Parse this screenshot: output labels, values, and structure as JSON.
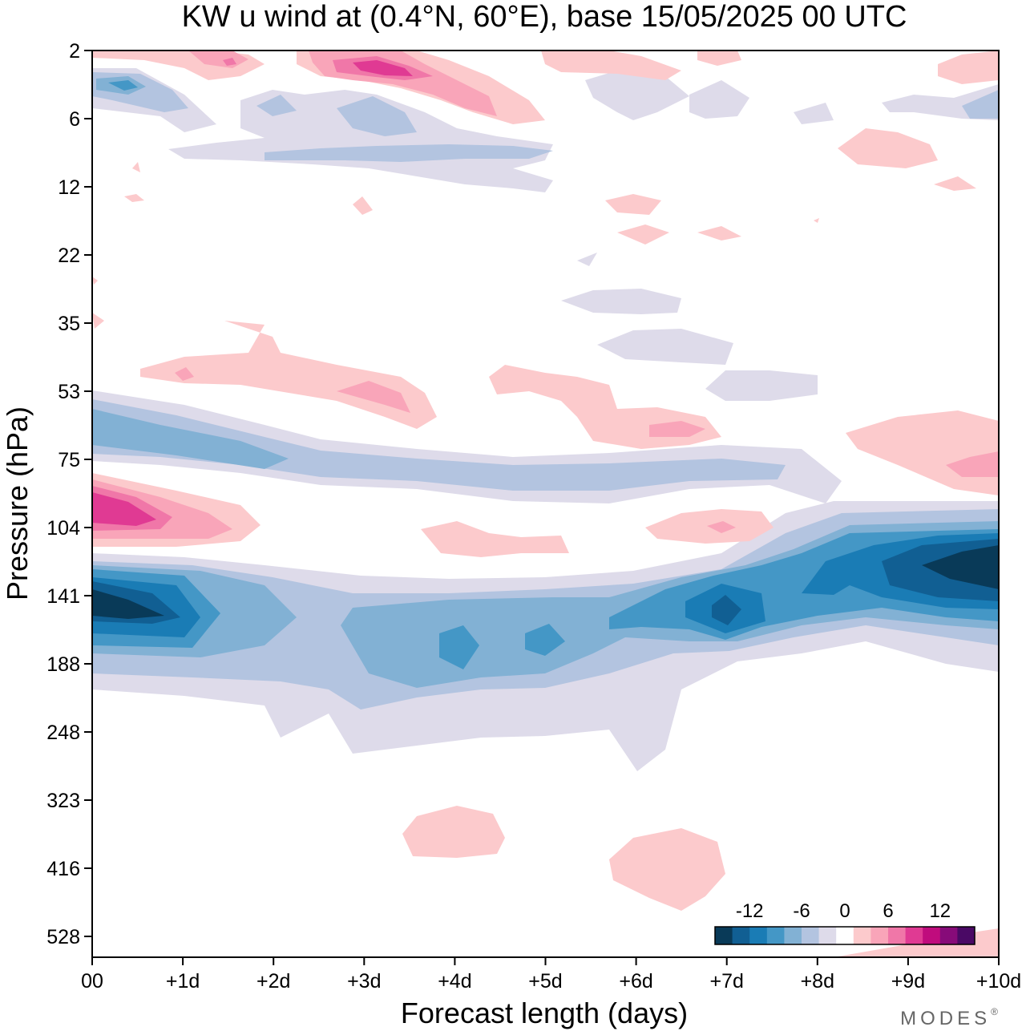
{
  "chart_data": {
    "type": "heatmap",
    "title": "KW u wind at (0.4°N, 60°E),  base 15/05/2025  00 UTC",
    "xlabel": "Forecast length (days)",
    "ylabel": "Pressure (hPa)",
    "x_ticks": [
      "00",
      "+1d",
      "+2d",
      "+3d",
      "+4d",
      "+5d",
      "+6d",
      "+7d",
      "+8d",
      "+9d",
      "+10d"
    ],
    "xlim": [
      0,
      10
    ],
    "y_ticks": [
      "2",
      "6",
      "12",
      "22",
      "35",
      "53",
      "75",
      "104",
      "141",
      "188",
      "248",
      "323",
      "416",
      "528"
    ],
    "y_scale": "log-pressure, inverted",
    "colorbar": {
      "tick_labels": [
        "-12",
        "-6",
        "0",
        "6",
        "12"
      ],
      "bin_edges": [
        -16,
        -14,
        -12,
        -10,
        -8,
        -6,
        -4,
        -2,
        2,
        4,
        6,
        8,
        10,
        12,
        14,
        16
      ],
      "colors": [
        "#093a58",
        "#115f93",
        "#1a7cb5",
        "#4497c6",
        "#82b1d4",
        "#b3c4e0",
        "#dedbea",
        "#ffffff",
        "#fccacc",
        "#f9a5b9",
        "#f077a8",
        "#e03a93",
        "#c00c7d",
        "#870b79",
        "#4a0965"
      ]
    },
    "features": [
      {
        "name": "lower-stratosphere-easterly-core",
        "x_range": [
          0,
          10
        ],
        "y_range_hPa": [
          104,
          248
        ],
        "min_value": -16,
        "trend": "strengthens after +6d"
      },
      {
        "name": "westerly-near-104hPa",
        "x_range": [
          0,
          2
        ],
        "y_hPa": 90,
        "max_value": 12
      },
      {
        "name": "easterly-band-near-60hPa",
        "x_range": [
          0,
          8
        ],
        "y_hPa": 65,
        "min_value": -8
      },
      {
        "name": "upper-stratosphere-westerly",
        "x_range": [
          1,
          4
        ],
        "y_hPa": 3,
        "max_value": 12
      }
    ]
  },
  "brand": {
    "text": "MODES",
    "mark": "®"
  }
}
